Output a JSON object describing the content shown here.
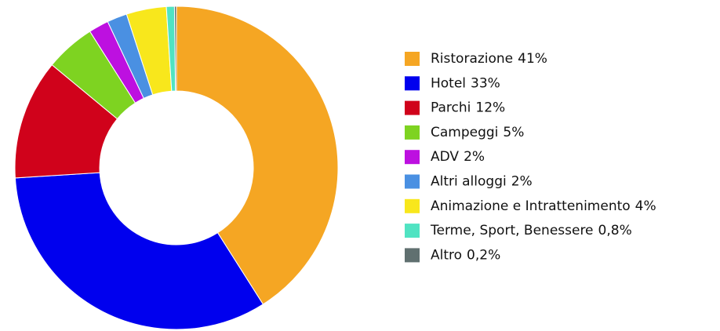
{
  "chart_data": {
    "type": "donut",
    "categories": [
      "Ristorazione",
      "Hotel",
      "Parchi",
      "Campeggi",
      "ADV",
      "Altri alloggi",
      "Animazione e Intrattenimento",
      "Terme, Sport, Benessere",
      "Altro"
    ],
    "values": [
      41,
      33,
      12,
      5,
      2,
      2,
      4,
      0.8,
      0.2
    ],
    "value_labels": [
      "41%",
      "33%",
      "12%",
      "5%",
      "2%",
      "2%",
      "4%",
      "0,8%",
      "0,2%"
    ],
    "colors": [
      "#f5a623",
      "#0000ee",
      "#d0021b",
      "#7ed321",
      "#bd10e0",
      "#4a90e2",
      "#f8e71c",
      "#50e3c2",
      "#607070"
    ],
    "legend": "right"
  }
}
